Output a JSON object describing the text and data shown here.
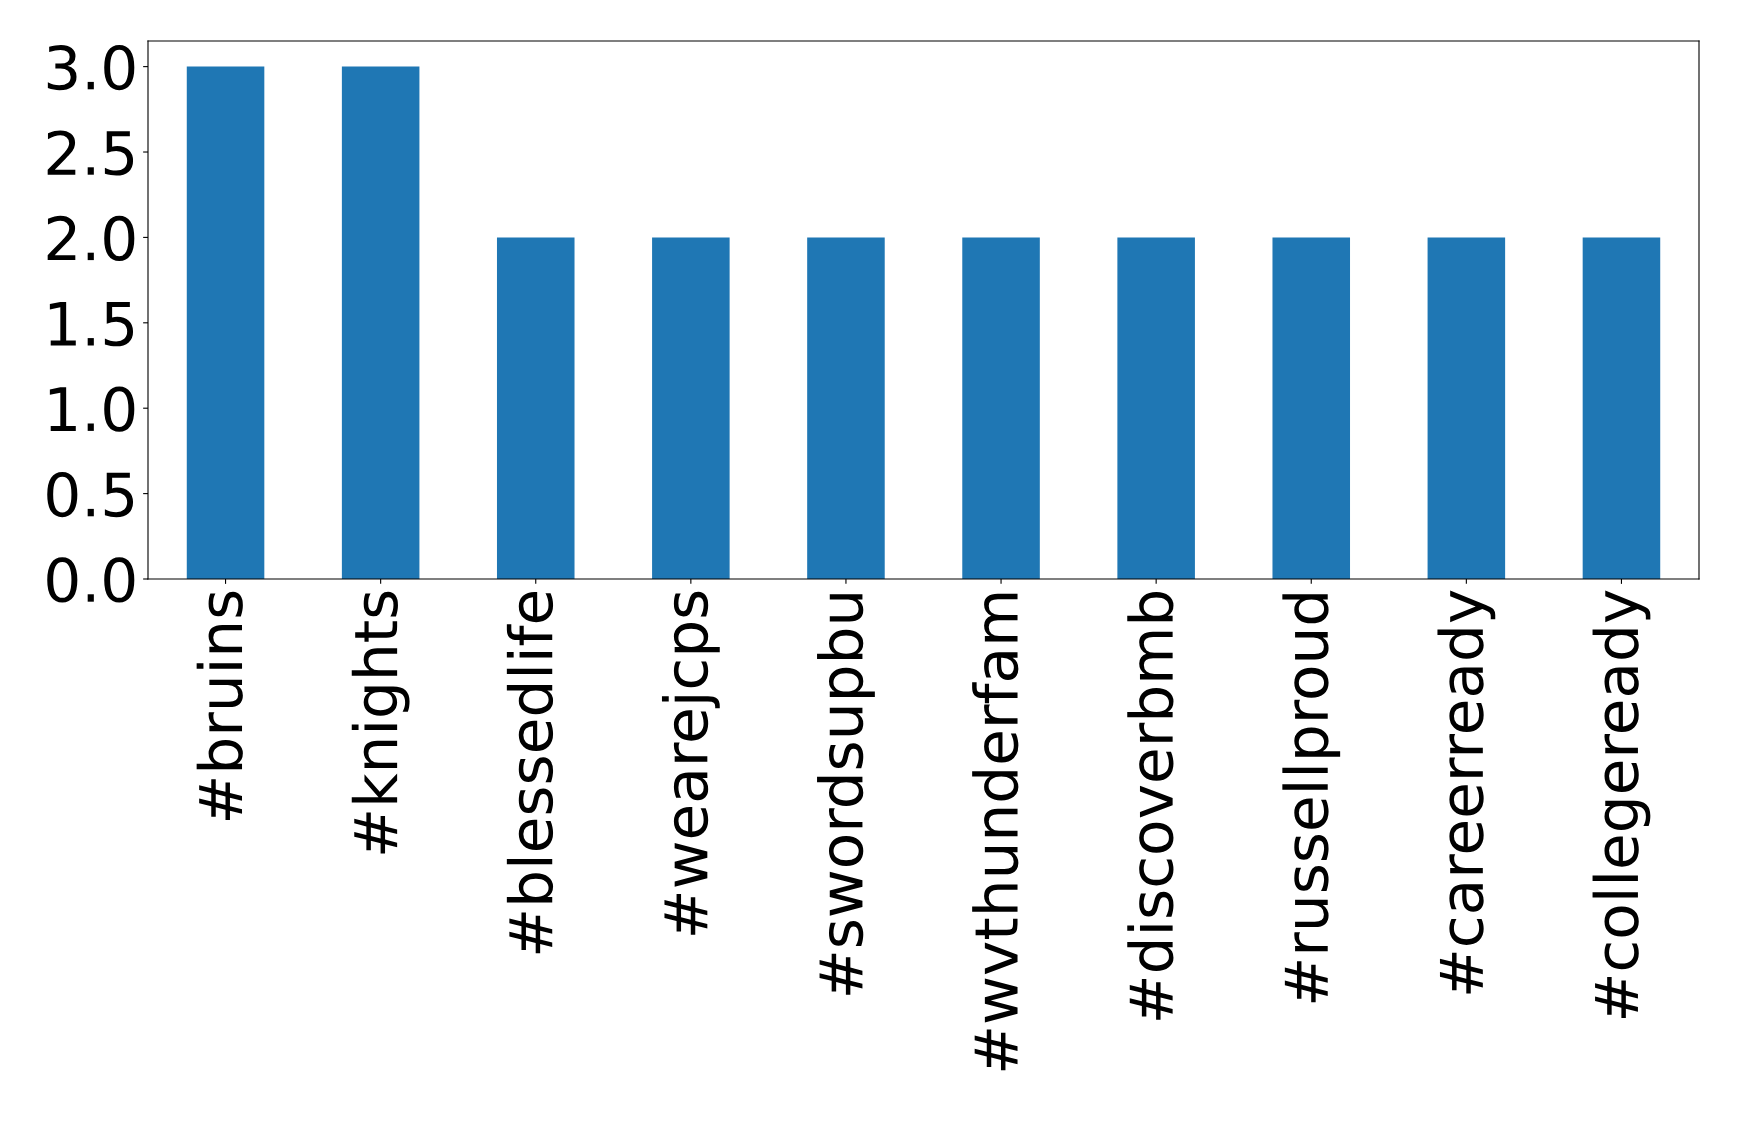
{
  "chart_data": {
    "type": "bar",
    "categories": [
      "#bruins",
      "#knights",
      "#blessedlife",
      "#wearejcps",
      "#swordsupbu",
      "#wvthunderfam",
      "#discoverbmb",
      "#russellproud",
      "#careerready",
      "#collegeready"
    ],
    "values": [
      3,
      3,
      2,
      2,
      2,
      2,
      2,
      2,
      2,
      2
    ],
    "color": "#1f77b4",
    "ylim": [
      0,
      3.15
    ],
    "yticks": [
      {
        "value": 0,
        "label": "0.0"
      },
      {
        "value": 0.5,
        "label": "0.5"
      },
      {
        "value": 1,
        "label": "1.0"
      },
      {
        "value": 1.5,
        "label": "1.5"
      },
      {
        "value": 2,
        "label": "2.0"
      },
      {
        "value": 2.5,
        "label": "2.5"
      },
      {
        "value": 3,
        "label": "3.0"
      }
    ],
    "grid": false,
    "legend": false
  }
}
